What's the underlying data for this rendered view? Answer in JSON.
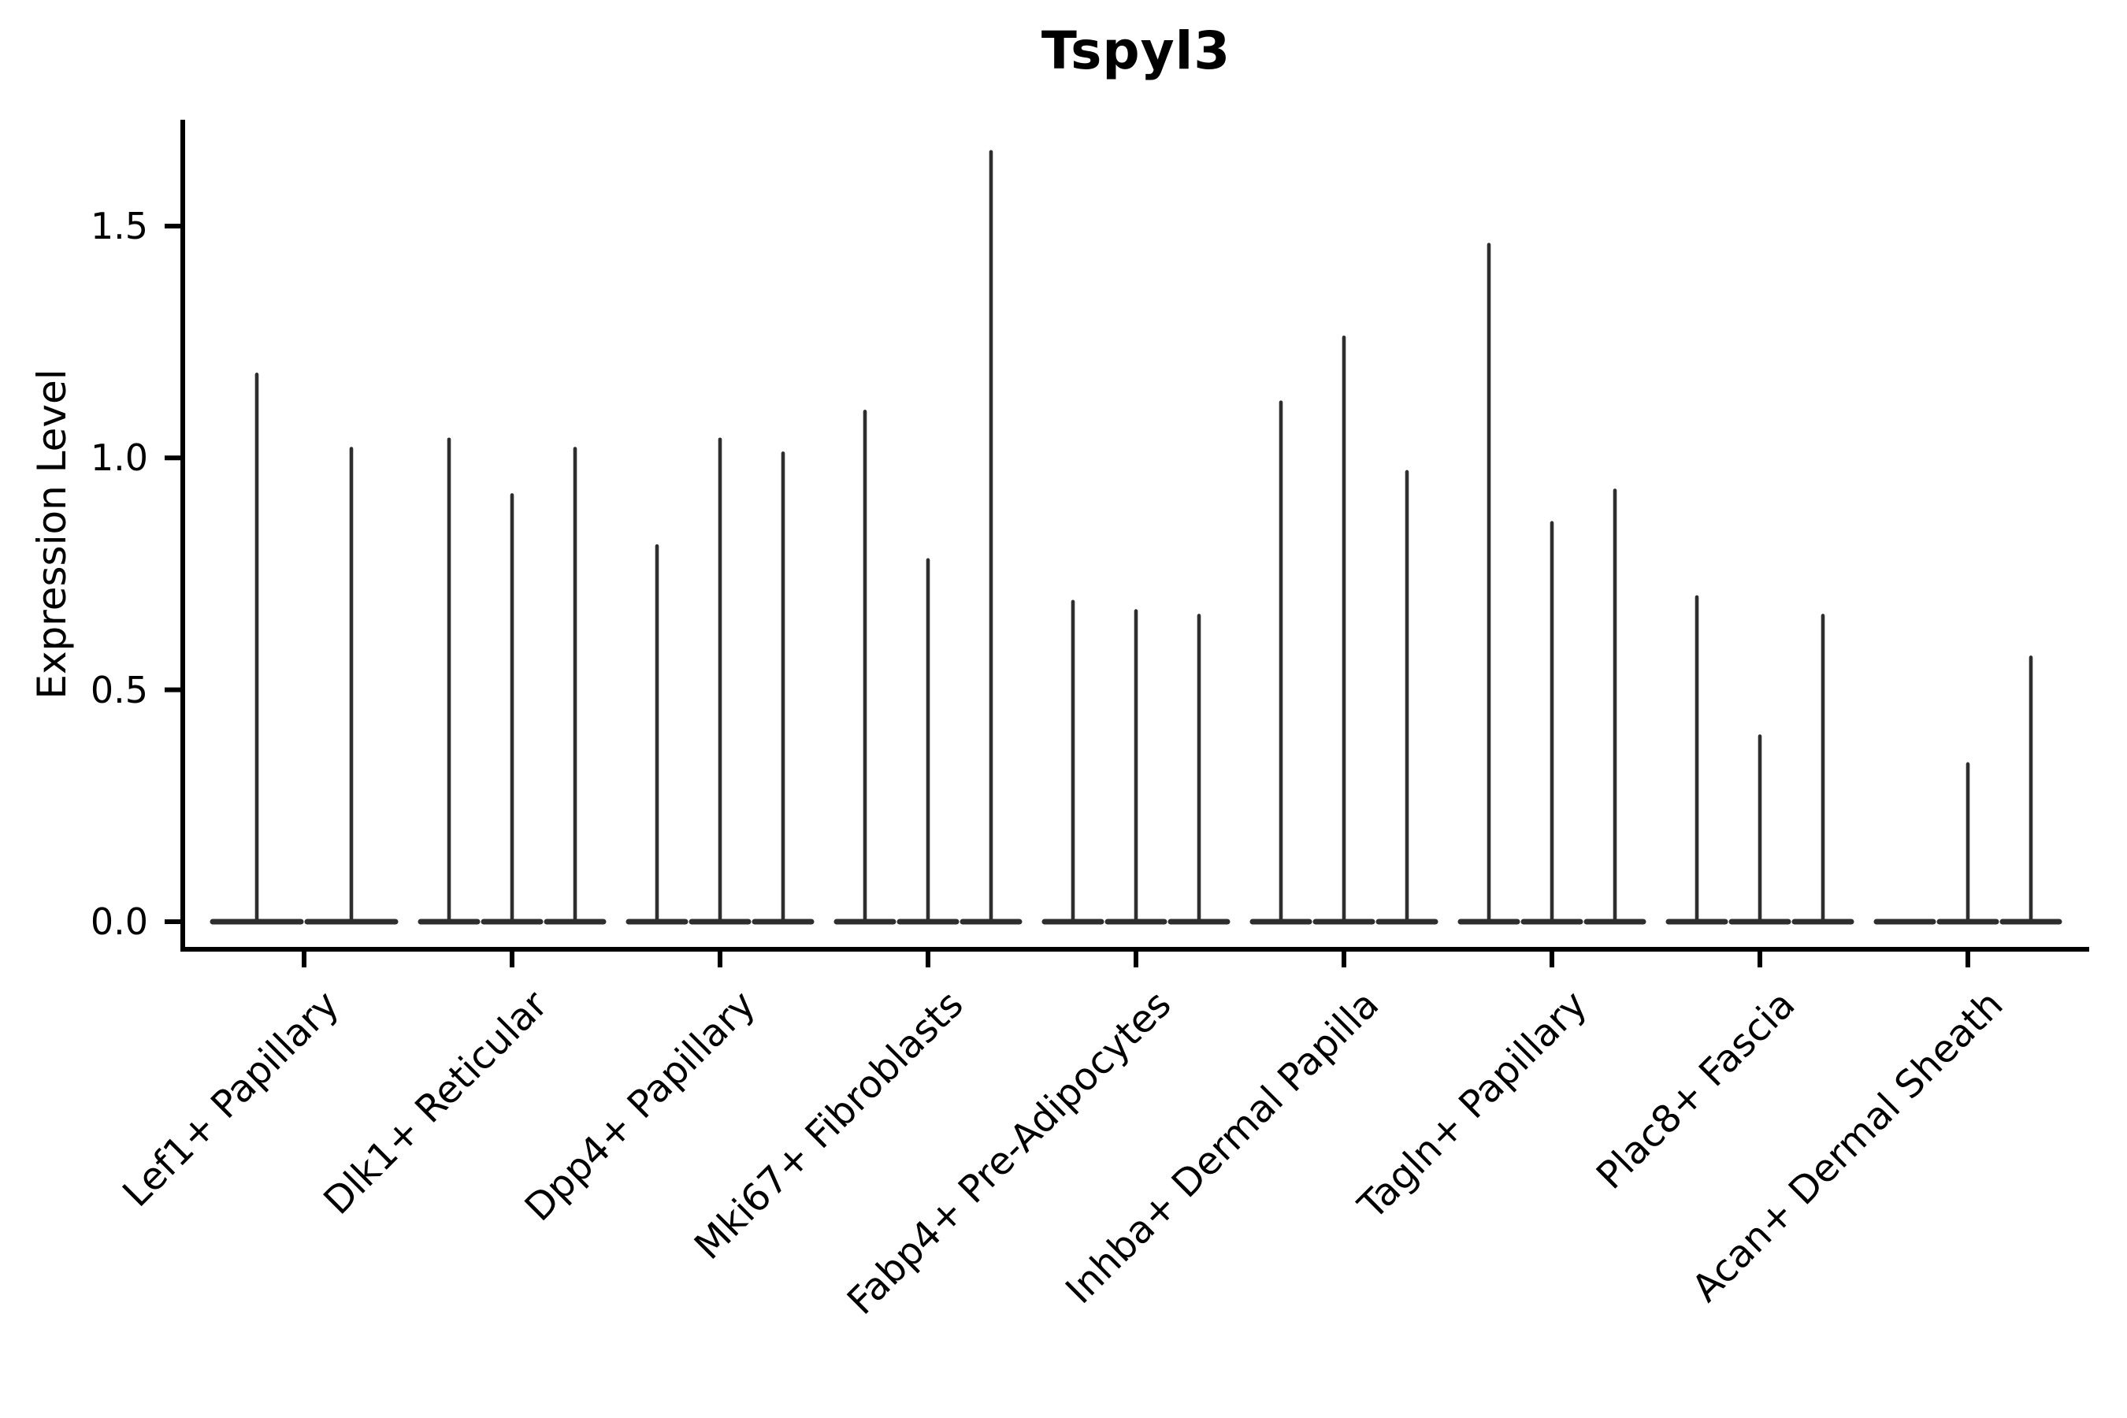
{
  "chart_data": {
    "type": "violin",
    "title": "Tspyl3",
    "xlabel": "",
    "ylabel": "Expression Level",
    "grid": false,
    "legend": "none",
    "ylim": [
      -0.06,
      1.73
    ],
    "y_ticks": [
      {
        "label": "0.0",
        "value": 0.0
      },
      {
        "label": "0.5",
        "value": 0.5
      },
      {
        "label": "1.0",
        "value": 1.0
      },
      {
        "label": "1.5",
        "value": 1.5
      }
    ],
    "categories": [
      {
        "label": "Lef1+ Papillary",
        "violin_max": [
          1.18,
          1.02
        ]
      },
      {
        "label": "Dlk1+ Reticular",
        "violin_max": [
          1.04,
          0.92,
          1.02
        ]
      },
      {
        "label": "Dpp4+ Papillary",
        "violin_max": [
          0.81,
          1.04,
          1.01
        ]
      },
      {
        "label": "Mki67+ Fibroblasts",
        "violin_max": [
          1.1,
          0.78,
          1.66
        ]
      },
      {
        "label": "Fabp4+ Pre-Adipocytes",
        "violin_max": [
          0.69,
          0.67,
          0.66
        ]
      },
      {
        "label": "Inhba+ Dermal Papilla",
        "violin_max": [
          1.12,
          1.26,
          0.97
        ]
      },
      {
        "label": "Tagln+ Papillary",
        "violin_max": [
          1.46,
          0.86,
          0.93
        ]
      },
      {
        "label": "Plac8+ Fascia",
        "violin_max": [
          0.7,
          0.4,
          0.66
        ]
      },
      {
        "label": "Acan+ Dermal Sheath",
        "violin_max": [
          0.0,
          0.34,
          0.57
        ]
      }
    ],
    "colors": {
      "violin": "#2e2e2e",
      "axis": "#000000",
      "text": "#000000",
      "background": "#ffffff"
    }
  }
}
